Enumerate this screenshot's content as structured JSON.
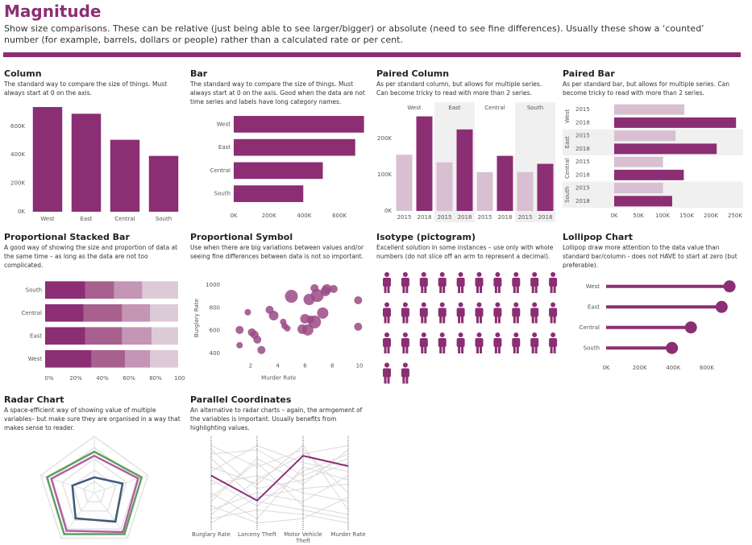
{
  "header": {
    "title": "Magnitude",
    "description": "Show size comparisons. These can be relative (just being able to see larger/bigger) or absolute (need to see fine differences). Usually these show a ‘counted’ number (for example, barrels, dollars or people) rather than a calculated rate or per cent."
  },
  "chart_data": [
    {
      "type": "column",
      "title": "Column",
      "subtitle": "The standard way to compare the size of things. Must always start at 0 on the axis.",
      "categories": [
        "West",
        "East",
        "Central",
        "South"
      ],
      "values": [
        735000,
        688000,
        505000,
        392000
      ],
      "color": "#8b2e73",
      "ylim": [
        0,
        780000
      ],
      "yticks": [
        {
          "value": 0,
          "label": "0K"
        },
        {
          "value": 200000,
          "label": "200K"
        },
        {
          "value": 400000,
          "label": "400K"
        },
        {
          "value": 600000,
          "label": "600K"
        }
      ]
    },
    {
      "type": "bar",
      "title": "Bar",
      "subtitle": "The standard way to compare the size of things. Must always start at 0 on the axis. Good when the data are not time series and labels have long category names.",
      "categories": [
        "West",
        "East",
        "Central",
        "South"
      ],
      "values": [
        740000,
        690000,
        506000,
        395000
      ],
      "color": "#8b2e73",
      "xlim": [
        0,
        760000
      ],
      "xticks": [
        {
          "value": 0,
          "label": "0K"
        },
        {
          "value": 200000,
          "label": "200K"
        },
        {
          "value": 400000,
          "label": "400K"
        },
        {
          "value": 600000,
          "label": "600K"
        }
      ]
    },
    {
      "type": "paired-column",
      "title": "Paired Column",
      "subtitle": "As per standard column, but allows for multiple series. Can become tricky to read with more than 2 series.",
      "categories": [
        "West",
        "East",
        "Central",
        "South"
      ],
      "series": [
        {
          "name": "2015",
          "color": "#d8bfd1",
          "values": [
            155000,
            134000,
            107000,
            107000
          ]
        },
        {
          "name": "2018",
          "color": "#8b2e73",
          "values": [
            261000,
            225000,
            152000,
            130000
          ]
        }
      ],
      "ylim": [
        0,
        300000
      ],
      "yticks": [
        {
          "value": 0,
          "label": "0K"
        },
        {
          "value": 100000,
          "label": "100K"
        },
        {
          "value": 200000,
          "label": "200K"
        }
      ]
    },
    {
      "type": "paired-bar",
      "title": "Paired Bar",
      "subtitle": "As per standard bar, but allows for multiple series. Can become tricky to read with more than 2 series.",
      "categories": [
        "West",
        "East",
        "Central",
        "South"
      ],
      "series": [
        {
          "name": "2015",
          "color": "#d8bfd1",
          "values": [
            145000,
            127000,
            101000,
            101000
          ]
        },
        {
          "name": "2018",
          "color": "#8b2e73",
          "values": [
            252000,
            212000,
            144000,
            120000
          ]
        }
      ],
      "xlim": [
        0,
        260000
      ],
      "xticks": [
        {
          "value": 0,
          "label": "0K"
        },
        {
          "value": 50000,
          "label": "50K"
        },
        {
          "value": 100000,
          "label": "100K"
        },
        {
          "value": 150000,
          "label": "150K"
        },
        {
          "value": 200000,
          "label": "200K"
        },
        {
          "value": 250000,
          "label": "250K"
        }
      ]
    },
    {
      "type": "stacked-bar",
      "title": "Proportional Stacked Bar",
      "subtitle": "A good way of showing the size and proportion of data at the same time – as long as the data are not too complicated.",
      "categories": [
        "South",
        "Central",
        "East",
        "West"
      ],
      "series": [
        {
          "color": "#8b2e73",
          "values": [
            30,
            29,
            30,
            35
          ]
        },
        {
          "color": "#a8618f",
          "values": [
            22,
            29,
            28,
            25
          ]
        },
        {
          "color": "#c495b4",
          "values": [
            21,
            21,
            22,
            19
          ]
        },
        {
          "color": "#dccbd7",
          "values": [
            27,
            21,
            20,
            21
          ]
        }
      ],
      "xlim": [
        0,
        100
      ],
      "xticks": [
        {
          "value": 0,
          "label": "0%"
        },
        {
          "value": 20,
          "label": "20%"
        },
        {
          "value": 40,
          "label": "40%"
        },
        {
          "value": 60,
          "label": "60%"
        },
        {
          "value": 80,
          "label": "80%"
        },
        {
          "value": 100,
          "label": "100%"
        }
      ]
    },
    {
      "type": "scatter",
      "title": "Proportional Symbol",
      "subtitle": "Use when there are big variations between values and/or seeing fine differences between data is not so important.",
      "xlabel": "Murder Rate",
      "ylabel": "Burglary Rate",
      "color": "#9b4a86",
      "x": [
        1.2,
        1.2,
        2.1,
        2.3,
        2.5,
        2.8,
        1.8,
        3.4,
        3.7,
        4.5,
        4.4,
        4.7,
        5.0,
        5.8,
        6.0,
        6.4,
        6.2,
        6.7,
        6.3,
        6.9,
        7.3,
        7.5,
        7.6,
        8.1,
        6.7,
        9.9,
        9.9
      ],
      "values": [
        606,
        472,
        585,
        563,
        521,
        430,
        761,
        782,
        732,
        641,
        676,
        620,
        901,
        613,
        704,
        697,
        606,
        676,
        873,
        908,
        754,
        944,
        965,
        965,
        972,
        866,
        634
      ],
      "sizes": [
        25,
        16,
        25,
        25,
        25,
        25,
        16,
        25,
        36,
        16,
        16,
        16,
        64,
        36,
        36,
        25,
        49,
        64,
        49,
        64,
        49,
        36,
        36,
        25,
        25,
        25,
        25
      ],
      "xlim": [
        0,
        10.5
      ],
      "xticks": [
        2,
        4,
        6,
        8,
        10
      ],
      "ylim": [
        360,
        1060
      ],
      "yticks": [
        400,
        600,
        800,
        1000
      ]
    },
    {
      "type": "isotype",
      "title": "Isotype (pictogram)",
      "subtitle": "Excellent solution in some instances – use only with whole numbers (do not slice off an arm to represent a decimal).",
      "value": 32,
      "color": "#8b2e73"
    },
    {
      "type": "lollipop",
      "title": "Lollipop Chart",
      "subtitle": "Lollipop draw more attention to the data value than standard bar/column - does not HAVE to start at zero (but preferable).",
      "categories": [
        "West",
        "East",
        "Central",
        "South"
      ],
      "values": [
        735000,
        688000,
        505000,
        392000
      ],
      "color": "#8b2e73",
      "xlim": [
        0,
        780000
      ],
      "xticks": [
        {
          "value": 0,
          "label": "0K"
        },
        {
          "value": 200000,
          "label": "200K"
        },
        {
          "value": 400000,
          "label": "400K"
        },
        {
          "value": 600000,
          "label": "600K"
        }
      ]
    },
    {
      "type": "radar",
      "title": "Radar Chart",
      "subtitle": "A space-efficient way of showing value of multiple variables– but make sure they are organised in a way that makes sense to reader.",
      "rlim": [
        0,
        110
      ],
      "rticks": [
        22,
        44,
        66,
        88,
        110
      ],
      "series": [
        {
          "color": "#5f9e5f",
          "values": [
            80,
            97,
            100,
            100,
            97
          ]
        },
        {
          "color": "#b0609f",
          "values": [
            72,
            90,
            95,
            92,
            88
          ]
        },
        {
          "color": "#3f5a78",
          "values": [
            30,
            58,
            70,
            62,
            45
          ]
        }
      ]
    },
    {
      "type": "parallel",
      "title": "Parallel Coordinates",
      "subtitle": "An alternative to radar charts – again, the armgement of the variables is important. Usually benefits from highlighting values.",
      "axes": [
        "Burglary Rate",
        "Larceny Theft",
        "Motor Vehicle Theft",
        "Murder Rate"
      ],
      "ylim": [
        0,
        1
      ],
      "series": [
        {
          "color": "#dadada",
          "values": [
            0.95,
            0.7,
            0.9,
            0.4
          ]
        },
        {
          "color": "#dadada",
          "values": [
            0.85,
            0.9,
            0.6,
            0.8
          ]
        },
        {
          "color": "#dadada",
          "values": [
            0.7,
            0.5,
            0.95,
            0.2
          ]
        },
        {
          "color": "#dadada",
          "values": [
            0.2,
            0.4,
            0.3,
            0.6
          ]
        },
        {
          "color": "#dadada",
          "values": [
            0.1,
            0.2,
            0.15,
            0.05
          ]
        },
        {
          "color": "#dadada",
          "values": [
            0.3,
            0.8,
            0.5,
            0.9
          ]
        },
        {
          "color": "#dadada",
          "values": [
            0.5,
            0.6,
            0.4,
            0.3
          ]
        },
        {
          "color": "#dadada",
          "values": [
            0.4,
            0.1,
            0.7,
            0.55
          ]
        },
        {
          "color": "#dadada",
          "values": [
            0.8,
            0.3,
            0.2,
            0.1
          ]
        },
        {
          "color": "#dadada",
          "values": [
            0.15,
            0.55,
            0.85,
            0.95
          ]
        },
        {
          "color": "#dadada",
          "values": [
            0.65,
            0.95,
            0.75,
            0.65
          ]
        },
        {
          "color": "#dadada",
          "values": [
            0.25,
            0.05,
            0.1,
            0.35
          ]
        },
        {
          "color": "#dadada",
          "values": [
            0.9,
            0.45,
            0.55,
            0.75
          ]
        },
        {
          "color": "#dadada",
          "values": [
            0.35,
            0.75,
            0.25,
            0.15
          ]
        },
        {
          "color": "#dadada",
          "values": [
            0.55,
            0.25,
            0.65,
            0.85
          ]
        },
        {
          "color": "#dadada",
          "values": [
            0.05,
            0.35,
            0.45,
            0.5
          ]
        },
        {
          "color": "#8b2e73",
          "values": [
            0.6,
            0.31,
            0.83,
            0.71
          ]
        }
      ]
    }
  ]
}
